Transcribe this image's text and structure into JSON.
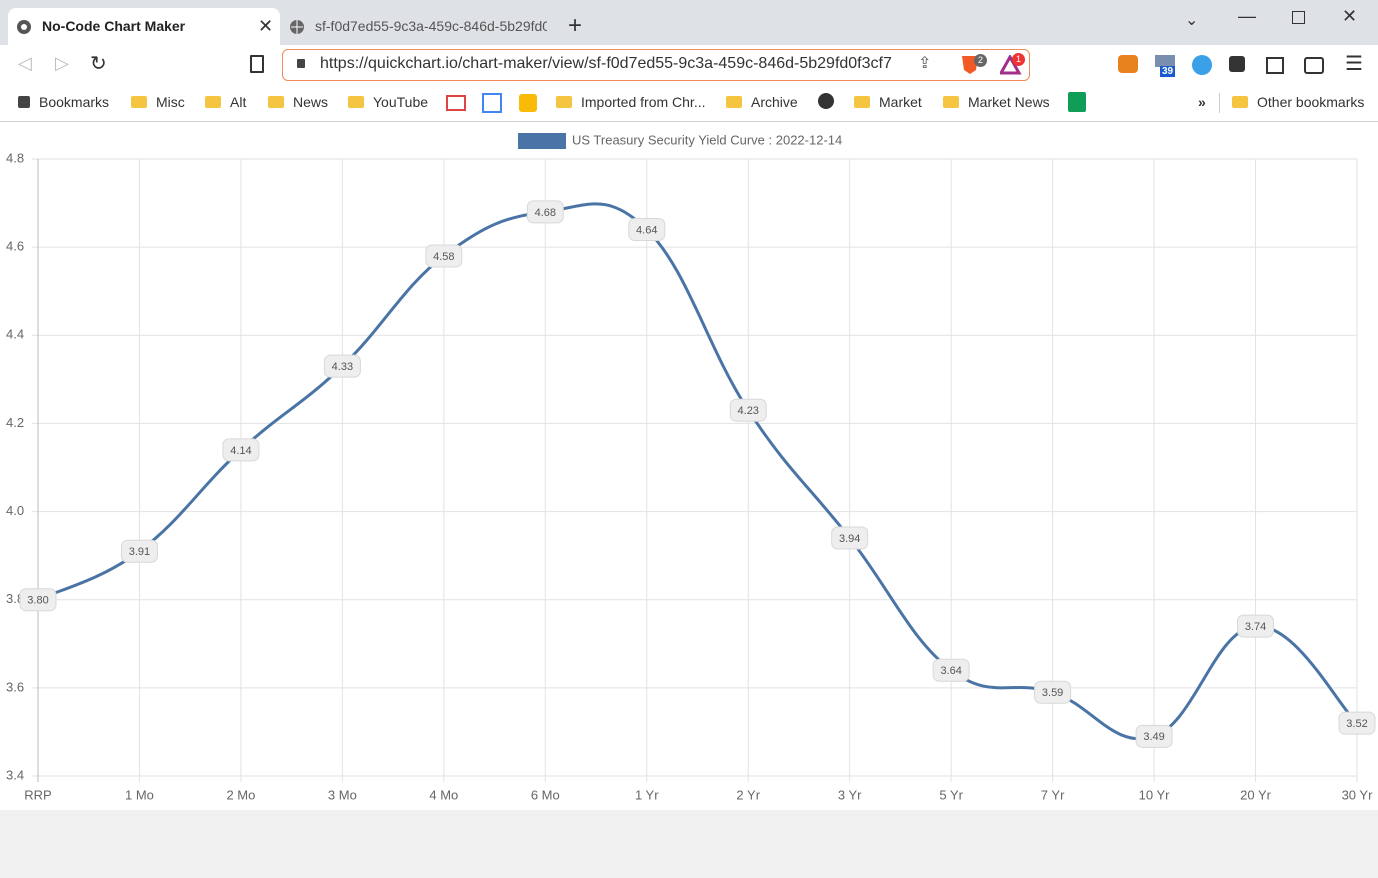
{
  "tabs": [
    {
      "title": "No-Code Chart Maker"
    },
    {
      "title": "sf-f0d7ed55-9c3a-459c-846d-5b29fd0"
    }
  ],
  "address_bar": {
    "url": "https://quickchart.io/chart-maker/view/sf-f0d7ed55-9c3a-459c-846d-5b29fd0f3cf7"
  },
  "extension_badges": [
    "2",
    "1",
    "39"
  ],
  "bookmarks": [
    "Bookmarks",
    "Misc",
    "Alt",
    "News",
    "YouTube",
    "Imported from Chr...",
    "Archive",
    "Market",
    "Market News"
  ],
  "other_bookmarks": "Other bookmarks",
  "chart_data": {
    "type": "line",
    "categories": [
      "RRP",
      "1 Mo",
      "2 Mo",
      "3 Mo",
      "4 Mo",
      "6 Mo",
      "1 Yr",
      "2 Yr",
      "3 Yr",
      "5 Yr",
      "7 Yr",
      "10 Yr",
      "20 Yr",
      "30 Yr"
    ],
    "series": [
      {
        "name": "US Treasury Security Yield Curve : 2022-12-14",
        "color": "#4a74a5",
        "values": [
          3.8,
          3.91,
          4.14,
          4.33,
          4.58,
          4.68,
          4.64,
          4.23,
          3.94,
          3.64,
          3.59,
          3.49,
          3.74,
          3.52
        ],
        "value_labels": [
          "3.80",
          "3.91",
          "4.14",
          "4.33",
          "4.58",
          "4.68",
          "4.64",
          "4.23",
          "3.94",
          "3.64",
          "3.59",
          "3.49",
          "3.74",
          "3.52"
        ]
      }
    ],
    "ylim": [
      3.4,
      4.8
    ],
    "yticks": [
      3.4,
      3.6,
      3.8,
      {
        "value": 4,
        "label": "4.0"
      },
      4.2,
      4.4,
      4.6,
      4.8
    ],
    "grid": true
  }
}
